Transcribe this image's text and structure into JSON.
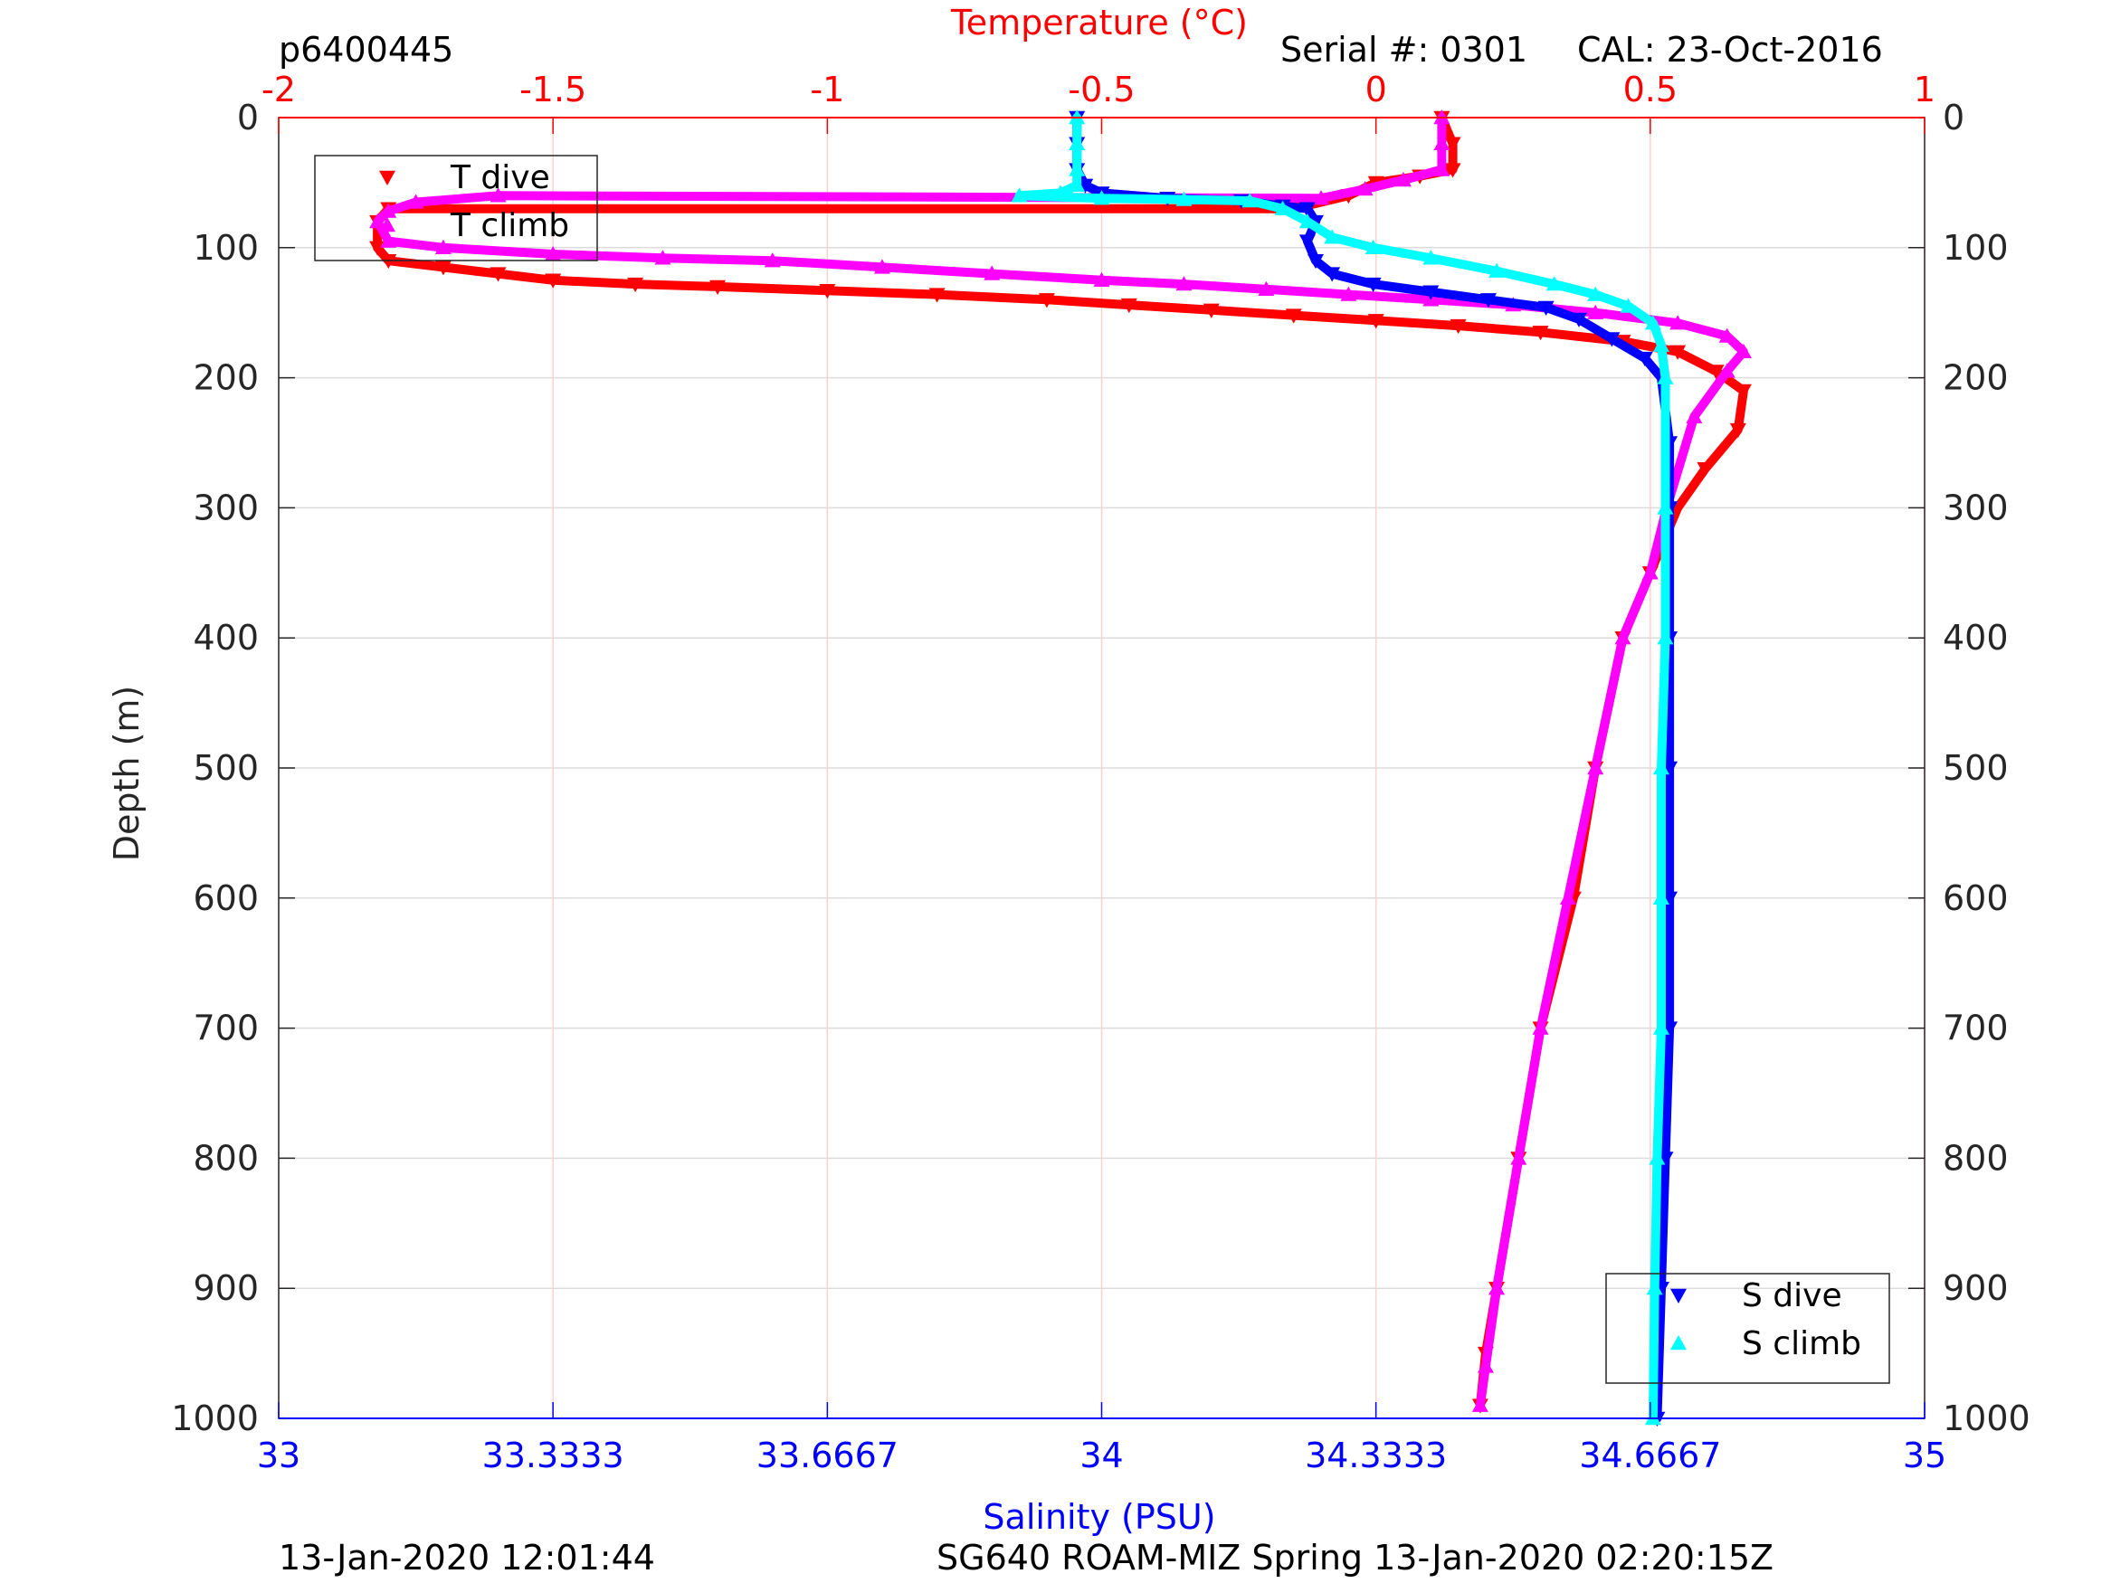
{
  "header": {
    "profile_id": "p6400445",
    "serial": "Serial #: 0301",
    "cal": "CAL: 23-Oct-2016"
  },
  "footer": {
    "left": "13-Jan-2020 12:01:44",
    "right": "SG640 ROAM-MIZ Spring 13-Jan-2020 02:20:15Z"
  },
  "colors": {
    "temp_axis": "#ff0000",
    "sal_axis": "#0000ff",
    "t_dive": "#ff0000",
    "t_climb": "#ff00ff",
    "s_dive": "#0000ff",
    "s_climb": "#00ffff"
  },
  "chart_data": {
    "type": "scatter",
    "title": "",
    "ylabel": "Depth (m)",
    "ylim": [
      0,
      1000
    ],
    "y_reversed": true,
    "yticks": [
      0,
      100,
      200,
      300,
      400,
      500,
      600,
      700,
      800,
      900,
      1000
    ],
    "grid": true,
    "top_axis": {
      "label": "Temperature (°C)",
      "range": [
        -2,
        1
      ],
      "ticks": [
        -2,
        -1.5,
        -1,
        -0.5,
        0,
        0.5,
        1
      ],
      "tick_labels": [
        "-2",
        "-1.5",
        "-1",
        "-0.5",
        "0",
        "0.5",
        "1"
      ]
    },
    "bottom_axis": {
      "label": "Salinity (PSU)",
      "range": [
        33,
        35
      ],
      "ticks": [
        33,
        33.3333,
        33.6667,
        34,
        34.3333,
        34.6667,
        35
      ],
      "tick_labels": [
        "33",
        "33.3333",
        "33.6667",
        "34",
        "34.3333",
        "34.6667",
        "35"
      ]
    },
    "legends": [
      {
        "position": "top-left",
        "entries": [
          "T dive",
          "T climb"
        ]
      },
      {
        "position": "bottom-right",
        "entries": [
          "S dive",
          "S climb"
        ]
      }
    ],
    "series": [
      {
        "name": "T dive",
        "axis": "temperature",
        "marker": "triangle-down",
        "points": [
          [
            0.12,
            0
          ],
          [
            0.14,
            20
          ],
          [
            0.14,
            40
          ],
          [
            0.08,
            45
          ],
          [
            0.0,
            50
          ],
          [
            -0.05,
            60
          ],
          [
            -0.15,
            70
          ],
          [
            -1.8,
            70
          ],
          [
            -1.82,
            80
          ],
          [
            -1.82,
            100
          ],
          [
            -1.8,
            110
          ],
          [
            -1.7,
            115
          ],
          [
            -1.6,
            120
          ],
          [
            -1.5,
            125
          ],
          [
            -1.35,
            128
          ],
          [
            -1.2,
            130
          ],
          [
            -1.0,
            133
          ],
          [
            -0.8,
            136
          ],
          [
            -0.6,
            140
          ],
          [
            -0.45,
            144
          ],
          [
            -0.3,
            148
          ],
          [
            -0.15,
            152
          ],
          [
            0.0,
            156
          ],
          [
            0.15,
            160
          ],
          [
            0.3,
            165
          ],
          [
            0.45,
            172
          ],
          [
            0.55,
            180
          ],
          [
            0.62,
            195
          ],
          [
            0.67,
            210
          ],
          [
            0.66,
            240
          ],
          [
            0.6,
            270
          ],
          [
            0.55,
            300
          ],
          [
            0.5,
            350
          ],
          [
            0.45,
            400
          ],
          [
            0.4,
            500
          ],
          [
            0.36,
            600
          ],
          [
            0.3,
            700
          ],
          [
            0.26,
            800
          ],
          [
            0.22,
            900
          ],
          [
            0.2,
            950
          ],
          [
            0.19,
            990
          ]
        ]
      },
      {
        "name": "T climb",
        "axis": "temperature",
        "marker": "triangle-up",
        "points": [
          [
            0.12,
            0
          ],
          [
            0.12,
            20
          ],
          [
            0.12,
            40
          ],
          [
            0.05,
            48
          ],
          [
            -0.02,
            55
          ],
          [
            -0.1,
            62
          ],
          [
            -1.6,
            60
          ],
          [
            -1.75,
            65
          ],
          [
            -1.8,
            72
          ],
          [
            -1.82,
            80
          ],
          [
            -1.8,
            95
          ],
          [
            -1.7,
            100
          ],
          [
            -1.5,
            105
          ],
          [
            -1.3,
            108
          ],
          [
            -1.1,
            110
          ],
          [
            -0.9,
            115
          ],
          [
            -0.7,
            120
          ],
          [
            -0.5,
            125
          ],
          [
            -0.35,
            128
          ],
          [
            -0.2,
            132
          ],
          [
            -0.05,
            136
          ],
          [
            0.1,
            140
          ],
          [
            0.25,
            144
          ],
          [
            0.4,
            150
          ],
          [
            0.55,
            158
          ],
          [
            0.64,
            168
          ],
          [
            0.67,
            180
          ],
          [
            0.64,
            195
          ],
          [
            0.58,
            230
          ],
          [
            0.53,
            300
          ],
          [
            0.5,
            350
          ],
          [
            0.45,
            400
          ],
          [
            0.4,
            500
          ],
          [
            0.35,
            600
          ],
          [
            0.3,
            700
          ],
          [
            0.26,
            800
          ],
          [
            0.22,
            900
          ],
          [
            0.2,
            960
          ],
          [
            0.19,
            990
          ]
        ]
      },
      {
        "name": "S dive",
        "axis": "salinity",
        "marker": "triangle-down",
        "points": [
          [
            33.97,
            0
          ],
          [
            33.97,
            20
          ],
          [
            33.97,
            40
          ],
          [
            33.98,
            52
          ],
          [
            34.0,
            58
          ],
          [
            34.08,
            62
          ],
          [
            34.17,
            64
          ],
          [
            34.22,
            68
          ],
          [
            34.25,
            70
          ],
          [
            34.26,
            80
          ],
          [
            34.25,
            95
          ],
          [
            34.26,
            110
          ],
          [
            34.28,
            120
          ],
          [
            34.33,
            128
          ],
          [
            34.4,
            134
          ],
          [
            34.47,
            140
          ],
          [
            34.54,
            146
          ],
          [
            34.58,
            155
          ],
          [
            34.62,
            170
          ],
          [
            34.66,
            185
          ],
          [
            34.68,
            200
          ],
          [
            34.69,
            250
          ],
          [
            34.69,
            300
          ],
          [
            34.69,
            400
          ],
          [
            34.69,
            500
          ],
          [
            34.69,
            600
          ],
          [
            34.69,
            700
          ],
          [
            34.685,
            800
          ],
          [
            34.68,
            900
          ],
          [
            34.675,
            1000
          ]
        ]
      },
      {
        "name": "S climb",
        "axis": "salinity",
        "marker": "triangle-up",
        "points": [
          [
            33.97,
            0
          ],
          [
            33.97,
            20
          ],
          [
            33.97,
            40
          ],
          [
            33.97,
            52
          ],
          [
            33.95,
            58
          ],
          [
            33.9,
            60
          ],
          [
            34.0,
            62
          ],
          [
            34.1,
            63
          ],
          [
            34.18,
            64
          ],
          [
            34.22,
            70
          ],
          [
            34.25,
            80
          ],
          [
            34.28,
            92
          ],
          [
            34.33,
            100
          ],
          [
            34.4,
            108
          ],
          [
            34.48,
            118
          ],
          [
            34.55,
            128
          ],
          [
            34.6,
            136
          ],
          [
            34.64,
            145
          ],
          [
            34.67,
            158
          ],
          [
            34.68,
            175
          ],
          [
            34.685,
            200
          ],
          [
            34.685,
            300
          ],
          [
            34.685,
            400
          ],
          [
            34.68,
            500
          ],
          [
            34.68,
            600
          ],
          [
            34.68,
            700
          ],
          [
            34.675,
            800
          ],
          [
            34.672,
            900
          ],
          [
            34.67,
            1000
          ]
        ]
      }
    ]
  }
}
